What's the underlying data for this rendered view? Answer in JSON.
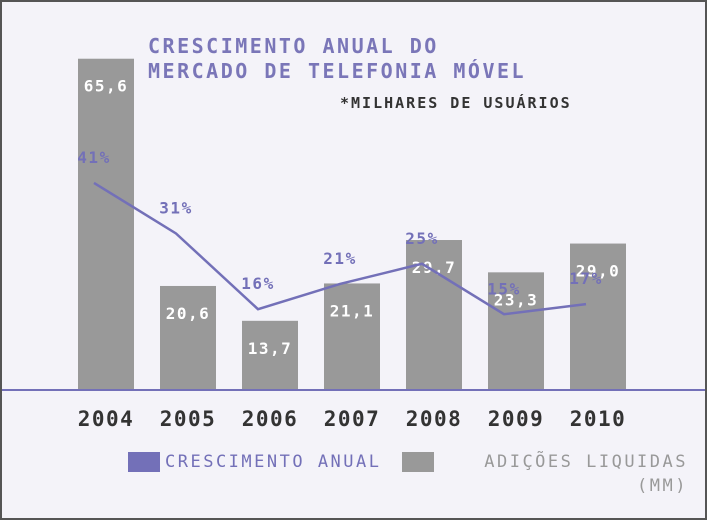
{
  "chart_data": {
    "type": "bar-line",
    "title": "CRESCIMENTO ANUAL DO\nMERCADO DE TELEFONIA MÓVEL",
    "subtitle": "*MILHARES DE USUÁRIOS",
    "categories": [
      "2004",
      "2005",
      "2006",
      "2007",
      "2008",
      "2009",
      "2010"
    ],
    "series": [
      {
        "name": "CRESCIMENTO ANUAL",
        "type": "line",
        "color": "#7370b8",
        "values": [
          41,
          31,
          16,
          21,
          25,
          15,
          17
        ],
        "value_labels": [
          "41%",
          "31%",
          "16%",
          "21%",
          "25%",
          "15%",
          "17%"
        ]
      },
      {
        "name": "ADIÇÕES LIQUIDAS\n(MM)",
        "type": "bar",
        "color": "#999999",
        "values": [
          65.6,
          20.6,
          13.7,
          21.1,
          29.7,
          23.3,
          29.0
        ],
        "value_labels": [
          "65,6",
          "20,6",
          "13,7",
          "21,1",
          "29,7",
          "23,3",
          "29,0"
        ]
      }
    ]
  }
}
